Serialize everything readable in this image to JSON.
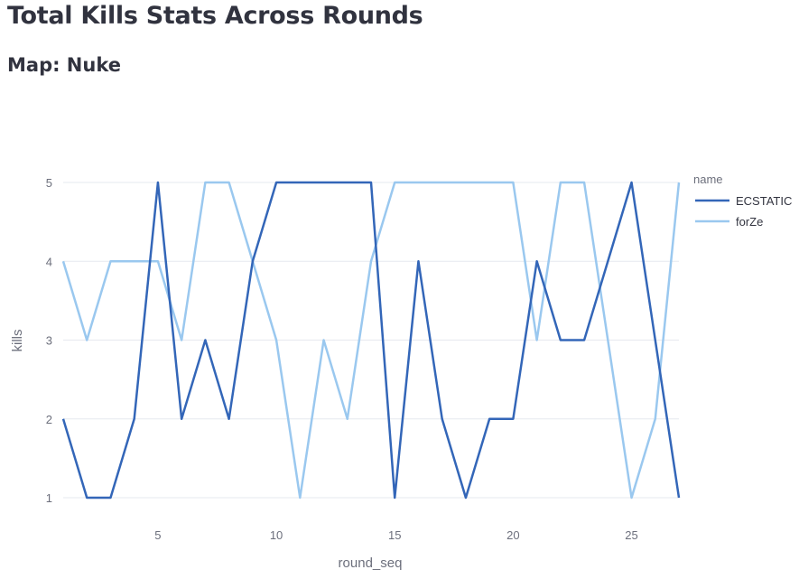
{
  "page": {
    "title": "Total Kills Stats Across Rounds",
    "subtitle": "Map: Nuke"
  },
  "chart_data": {
    "type": "line",
    "xlabel": "round_seq",
    "ylabel": "kills",
    "legend_title": "name",
    "legend_position": "right",
    "grid": true,
    "xlim": [
      1,
      27
    ],
    "ylim": [
      1,
      5
    ],
    "x_ticks": [
      5,
      10,
      15,
      20,
      25
    ],
    "y_ticks": [
      1,
      2,
      3,
      4,
      5
    ],
    "x": [
      1,
      2,
      3,
      4,
      5,
      6,
      7,
      8,
      9,
      10,
      11,
      12,
      13,
      14,
      15,
      16,
      17,
      18,
      19,
      20,
      21,
      22,
      23,
      24,
      25,
      26,
      27
    ],
    "series": [
      {
        "name": "ECSTATIC",
        "color": "#3366b8",
        "values": [
          2,
          1,
          1,
          2,
          5,
          2,
          3,
          2,
          4,
          5,
          5,
          5,
          5,
          5,
          1,
          4,
          2,
          1,
          2,
          2,
          4,
          3,
          3,
          4,
          5,
          3,
          1
        ]
      },
      {
        "name": "forZe",
        "color": "#9ac8ef",
        "values": [
          4,
          3,
          4,
          4,
          4,
          3,
          5,
          5,
          4,
          3,
          1,
          3,
          2,
          4,
          5,
          5,
          5,
          5,
          5,
          5,
          3,
          5,
          5,
          3,
          1,
          2,
          5
        ]
      }
    ]
  }
}
